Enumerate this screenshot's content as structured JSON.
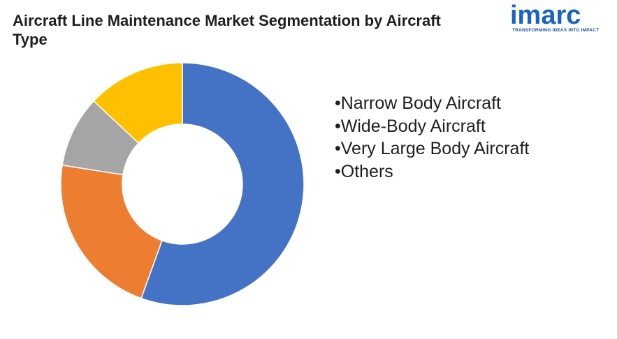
{
  "title": "Aircraft Line Maintenance Market Segmentation by Aircraft Type",
  "logo": {
    "word": "imarc",
    "tagline": "TRANSFORMING IDEAS INTO IMPACT",
    "color": "#1a63c4"
  },
  "chart_data": {
    "type": "pie",
    "style": "donut",
    "categories": [
      "Narrow Body Aircraft",
      "Wide-Body Aircraft",
      "Very Large Body Aircraft",
      "Others"
    ],
    "values": [
      55.5,
      22,
      9.5,
      13
    ],
    "colors": [
      "#4472c4",
      "#ed7d31",
      "#a5a5a5",
      "#ffc000"
    ],
    "legend_position": "right",
    "legend_items": [
      "•Narrow Body Aircraft",
      "•Wide-Body Aircraft",
      "•Very Large Body Aircraft",
      "•Others"
    ]
  }
}
